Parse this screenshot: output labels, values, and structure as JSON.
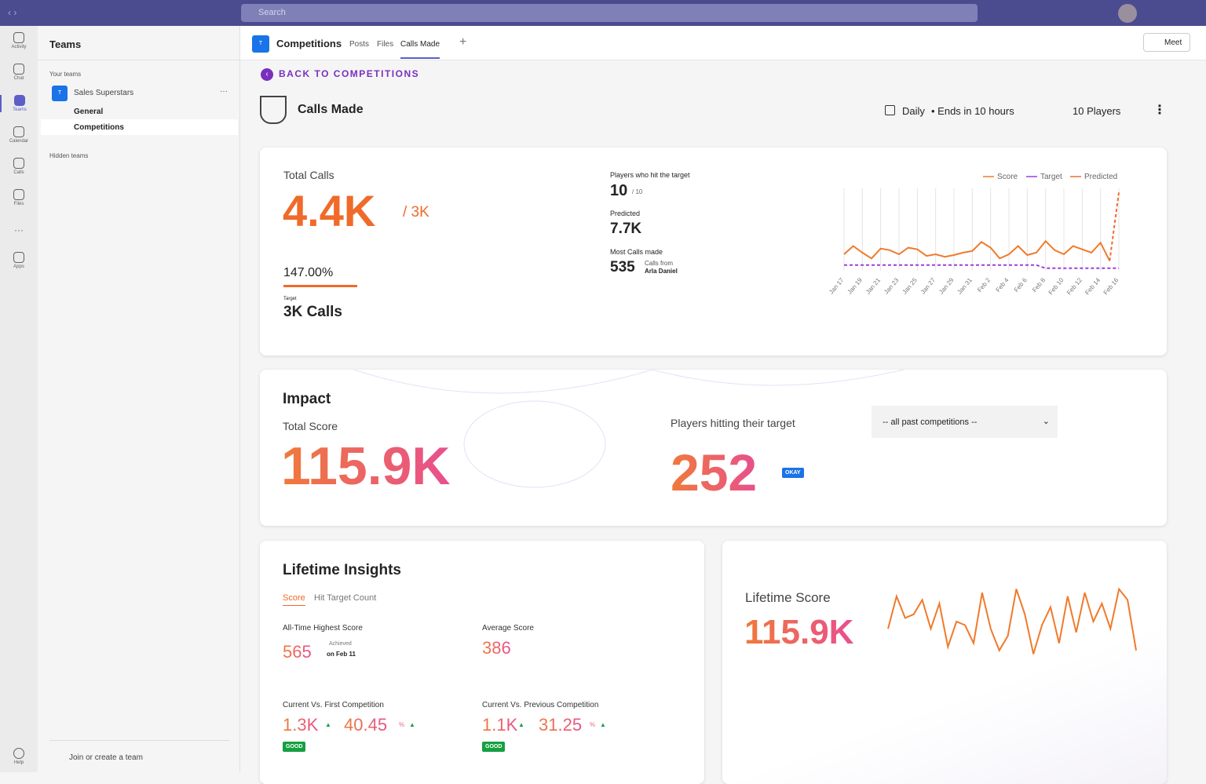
{
  "title_bar": {
    "search": "Search"
  },
  "rail": [
    "Activity",
    "Chat",
    "Teams",
    "Calendar",
    "Calls",
    "Files",
    "Apps",
    "Help"
  ],
  "sidebar": {
    "title": "Teams",
    "your_teams": "Your teams",
    "team_initial": "T",
    "team": "Sales Superstars",
    "channels": [
      "General",
      "Competitions"
    ],
    "hidden": "Hidden teams",
    "join": "Join or create a team"
  },
  "header": {
    "initial": "T",
    "name": "Competitions",
    "tabs": [
      "Posts",
      "Files",
      "Calls Made"
    ],
    "meet": "Meet"
  },
  "back": "BACK TO COMPETITIONS",
  "competition": {
    "title": "Calls Made",
    "frequency": "Daily",
    "ends": "Ends in 10 hours",
    "players": "10 Players"
  },
  "summary": {
    "total_label": "Total Calls",
    "total": "4.4K",
    "of": "/ 3K",
    "percent": "147.00%",
    "target_label": "Target",
    "target": "3K Calls",
    "hit_label": "Players who hit the target",
    "hit": "10",
    "hit_of": "/ 10",
    "predicted_label": "Predicted",
    "predicted": "7.7K",
    "most_label": "Most Calls made",
    "most": "535",
    "most_from": "Calls from",
    "most_name": "Arla Daniel"
  },
  "calls_chart": {
    "type": "line",
    "categories": [
      "Jan 17",
      null,
      "Jan 19",
      null,
      "Jan 21",
      null,
      "Jan 23",
      null,
      "Jan 25",
      null,
      "Jan 27",
      null,
      "Jan 29",
      null,
      "Jan 31",
      null,
      "Feb 2",
      null,
      "Feb 4",
      null,
      "Feb 6",
      null,
      "Feb 8",
      null,
      "Feb 10",
      null,
      "Feb 12",
      null,
      "Feb 14",
      null,
      "Feb 16"
    ],
    "ylim": [
      0,
      100
    ],
    "series": [
      {
        "name": "Score",
        "color": "#f07a2a",
        "values": [
          20,
          30,
          22,
          15,
          27,
          25,
          20,
          28,
          26,
          18,
          20,
          17,
          19,
          22,
          24,
          35,
          28,
          15,
          20,
          30,
          19,
          22,
          36,
          25,
          20,
          30,
          26,
          22,
          34,
          12,
          null
        ]
      },
      {
        "name": "Target",
        "color": "#9b3fe0",
        "values": [
          7,
          7,
          7,
          7,
          7,
          7,
          7,
          7,
          7,
          7,
          7,
          7,
          7,
          7,
          7,
          7,
          7,
          7,
          7,
          7,
          7,
          7,
          3,
          3,
          3,
          3,
          3,
          3,
          3,
          3,
          3
        ]
      },
      {
        "name": "Predicted",
        "color": "#f06a2a",
        "values": [
          null,
          null,
          null,
          null,
          null,
          null,
          null,
          null,
          null,
          null,
          null,
          null,
          null,
          null,
          null,
          null,
          null,
          null,
          null,
          null,
          null,
          null,
          null,
          null,
          null,
          null,
          null,
          null,
          null,
          12,
          95
        ]
      }
    ]
  },
  "impact": {
    "title": "Impact",
    "total_label": "Total Score",
    "total": "115.9K",
    "players_label": "Players hitting their target",
    "players": "252",
    "badge": "OKAY",
    "select": "-- all past competitions --"
  },
  "insights": {
    "title": "Lifetime Insights",
    "tabs": [
      "Score",
      "Hit Target Count"
    ],
    "highest_label": "All-Time Highest Score",
    "highest": "565",
    "achieved": "Achieved",
    "achieved_on": "on Feb 11",
    "average_label": "Average Score",
    "average": "386",
    "first_label": "Current Vs. First Competition",
    "first_value": "1.3K",
    "first_pct": "40.45",
    "first_unit": "%",
    "first_badge": "GOOD",
    "prev_label": "Current Vs. Previous Competition",
    "prev_value": "1.1K",
    "prev_pct": "31.25",
    "prev_unit": "%",
    "prev_badge": "GOOD"
  },
  "lifetime": {
    "label": "Lifetime Score",
    "value": "115.9K",
    "chart": {
      "type": "line",
      "color": "#f07a2a",
      "ylim": [
        0,
        100
      ],
      "values": [
        40,
        85,
        55,
        60,
        80,
        40,
        75,
        15,
        50,
        45,
        20,
        90,
        40,
        10,
        30,
        95,
        60,
        5,
        45,
        70,
        20,
        85,
        35,
        90,
        50,
        75,
        40,
        95,
        80,
        10
      ]
    }
  }
}
